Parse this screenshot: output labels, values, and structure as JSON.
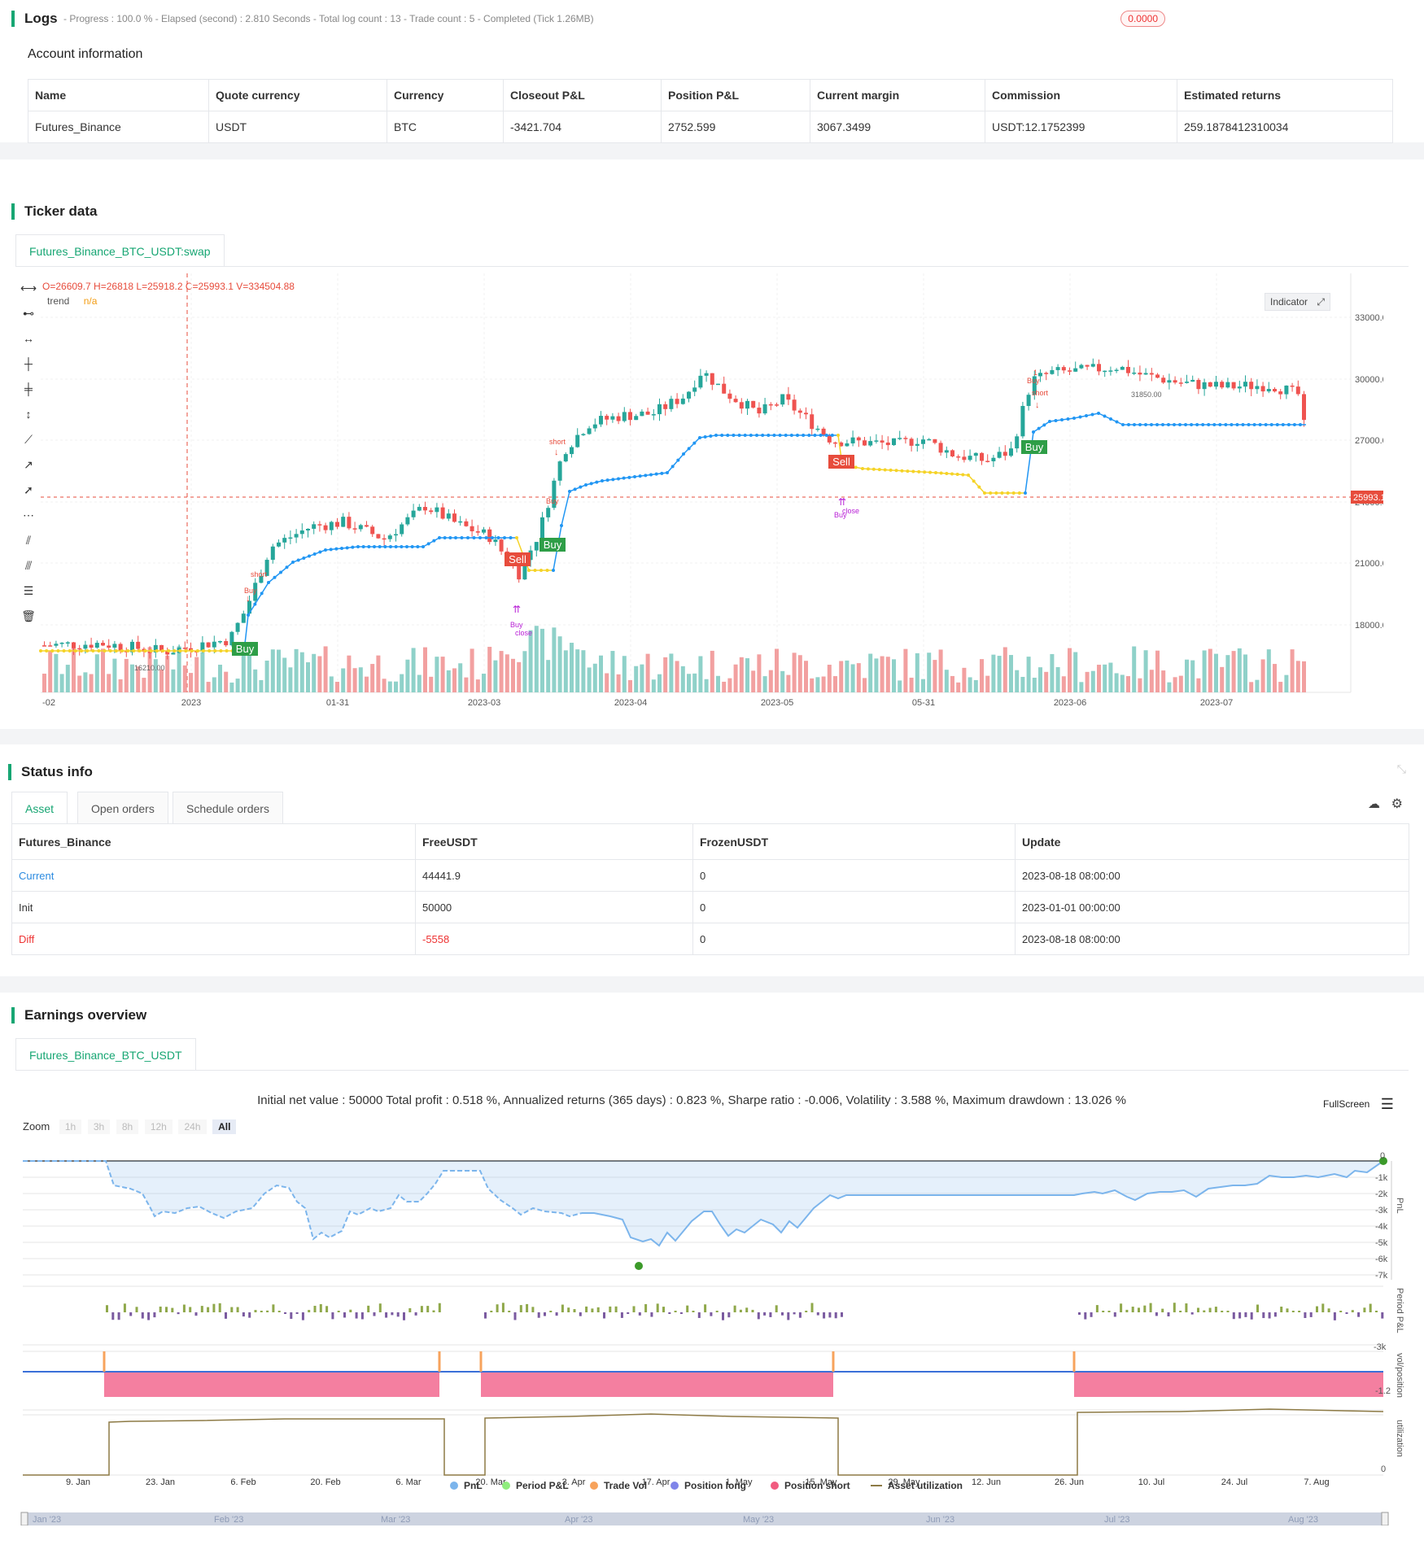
{
  "logs": {
    "title": "Logs",
    "summary": "- Progress : 100.0 % - Elapsed (second) : 2.810 Seconds - Total log count : 13 - Trade count : 5 - Completed (Tick 1.26MB)",
    "badge": "0.0000"
  },
  "account": {
    "title": "Account information",
    "headers": [
      "Name",
      "Quote currency",
      "Currency",
      "Closeout P&L",
      "Position P&L",
      "Current margin",
      "Commission",
      "Estimated returns"
    ],
    "row": [
      "Futures_Binance",
      "USDT",
      "BTC",
      "-3421.704",
      "2752.599",
      "3067.3499",
      "USDT:12.1752399",
      "259.1878412310034"
    ]
  },
  "ticker": {
    "title": "Ticker data",
    "tab": "Futures_Binance_BTC_USDT:swap",
    "ohlc": "O=26609.7 H=26818 L=25918.2 C=25993.1 V=334504.88",
    "trend_label": "trend",
    "trend_value": "n/a",
    "indicator_btn": "Indicator",
    "last_price": "25993.10",
    "high_label": "31850.00",
    "low_label": "16210.00",
    "y_ticks": [
      "33000.00",
      "30000.00",
      "27000.00",
      "24000.00",
      "21000.00",
      "18000.00"
    ],
    "x_ticks": [
      "-02",
      "2023",
      "01-31",
      "2023-03",
      "2023-04",
      "2023-05",
      "05-31",
      "2023-06",
      "2023-07"
    ],
    "signals": {
      "buy": "Buy",
      "sell": "Sell",
      "short": "short",
      "close": "close",
      "one": "1"
    }
  },
  "status": {
    "title": "Status info",
    "tabs": [
      "Asset",
      "Open orders",
      "Schedule orders"
    ],
    "headers": [
      "Futures_Binance",
      "FreeUSDT",
      "FrozenUSDT",
      "Update"
    ],
    "rows": [
      [
        "Current",
        "44441.9",
        "0",
        "2023-08-18 08:00:00"
      ],
      [
        "Init",
        "50000",
        "0",
        "2023-01-01 00:00:00"
      ],
      [
        "Diff",
        "-5558",
        "0",
        "2023-08-18 08:00:00"
      ]
    ]
  },
  "earnings": {
    "title": "Earnings overview",
    "tab": "Futures_Binance_BTC_USDT",
    "summary": "Initial net value : 50000 Total profit : 0.518 %, Annualized returns (365 days) : 0.823 %, Sharpe ratio : -0.006, Volatility : 3.588 %, Maximum drawdown : 13.026 %",
    "fullscreen": "FullScreen",
    "zoom_label": "Zoom",
    "zoom_options": [
      "1h",
      "3h",
      "8h",
      "12h",
      "24h",
      "All"
    ],
    "pnl_ticks": [
      "0",
      "-1k",
      "-2k",
      "-3k",
      "-4k",
      "-5k",
      "-6k",
      "-7k"
    ],
    "period_tick": "-3k",
    "pos_tick": "-1.2",
    "util_tick": "0",
    "axis_labels": [
      "PnL",
      "Period P&L",
      "vol/position",
      "utilization"
    ],
    "x_ticks": [
      "9. Jan",
      "23. Jan",
      "6. Feb",
      "20. Feb",
      "6. Mar",
      "20. Mar",
      "3. Apr",
      "17. Apr",
      "1. May",
      "15. May",
      "29. May",
      "12. Jun",
      "26. Jun",
      "10. Jul",
      "24. Jul",
      "7. Aug"
    ],
    "legend": [
      "PnL",
      "Period P&L",
      "Trade Vol",
      "Position long",
      "Position short",
      "Asset utilization"
    ],
    "nav_ticks": [
      "Jan '23",
      "Feb '23",
      "Mar '23",
      "Apr '23",
      "May '23",
      "Jun '23",
      "Jul '23",
      "Aug '23"
    ],
    "colors": {
      "pnl": "#7cb5ec",
      "period": "#90ed7d",
      "trade": "#f7a35c",
      "long": "#8085e9",
      "short": "#f15c80",
      "util": "#8d7a45"
    }
  }
}
